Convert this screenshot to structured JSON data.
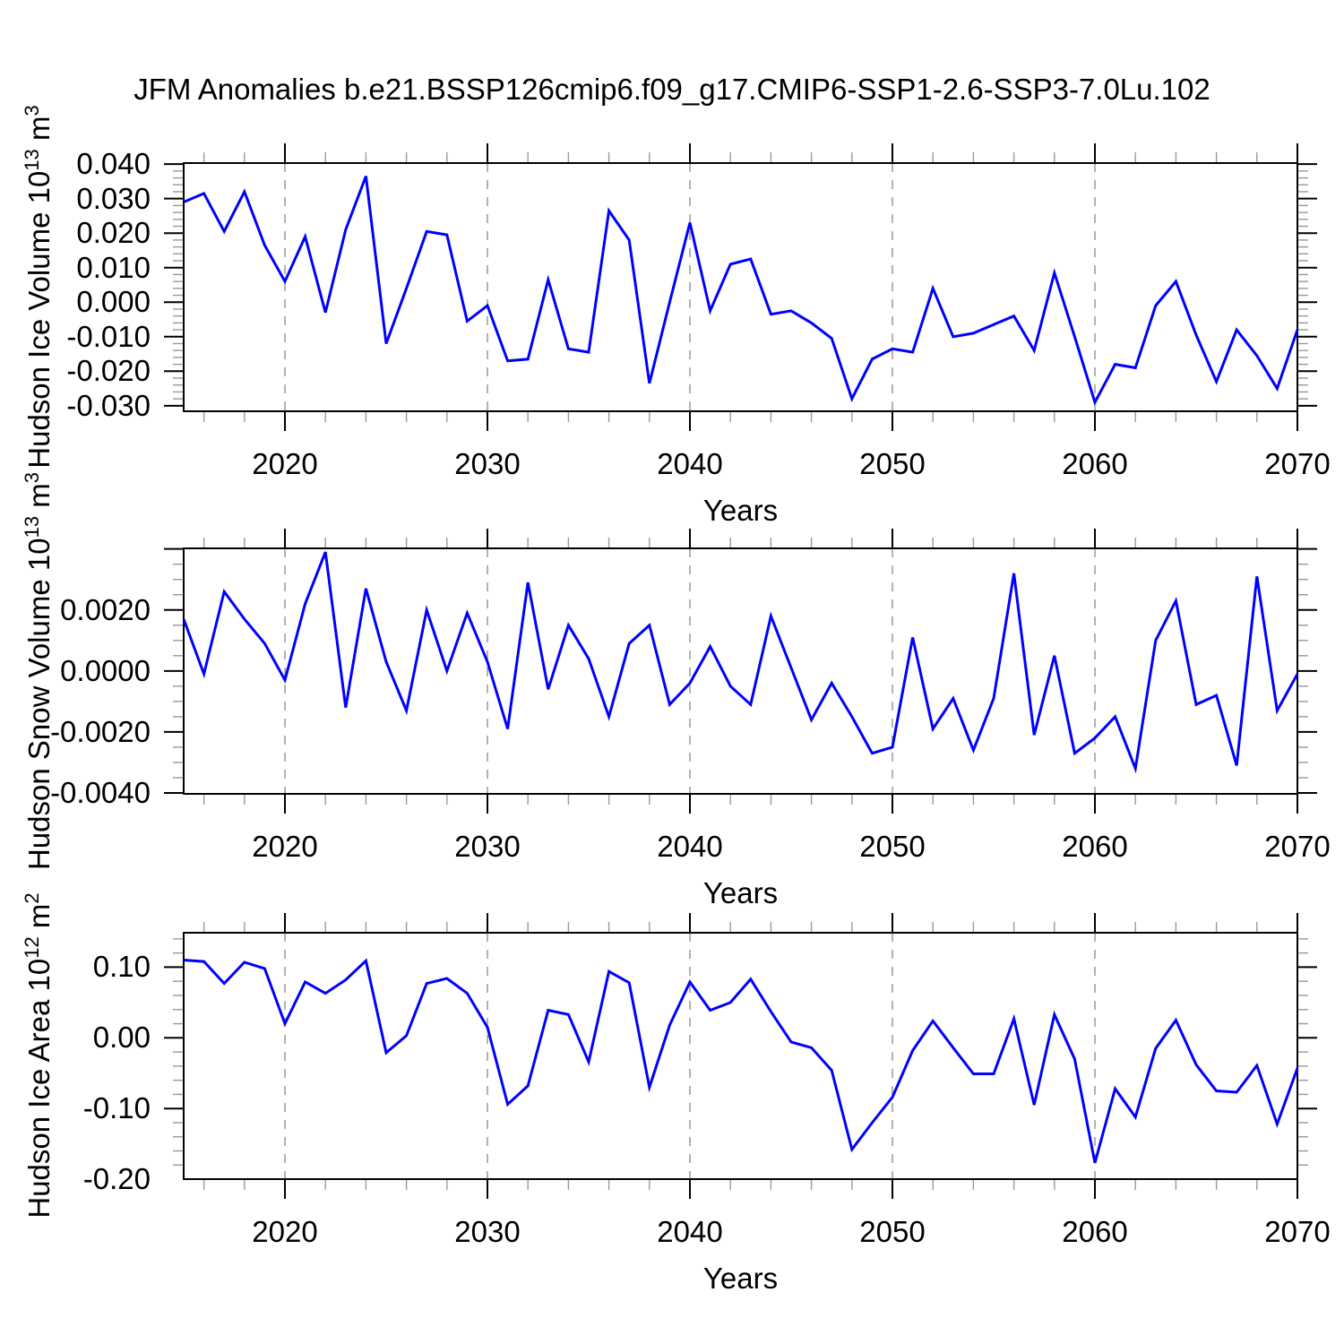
{
  "chart_data": {
    "type": "line",
    "title": "JFM Anomalies b.e21.BSSP126cmip6.f09_g17.CMIP6-SSP1-2.6-SSP3-7.0Lu.102",
    "xlabel": "Years",
    "line_color": "#0000ff",
    "grid_color": "#999999",
    "xlim": [
      2015,
      2070
    ],
    "xticks": [
      2020,
      2030,
      2040,
      2050,
      2060,
      2070
    ],
    "x_minor_step": 2,
    "grid_years": [
      2020,
      2030,
      2040,
      2050,
      2060
    ],
    "x_years": [
      2015,
      2016,
      2017,
      2018,
      2019,
      2020,
      2021,
      2022,
      2023,
      2024,
      2025,
      2026,
      2027,
      2028,
      2029,
      2030,
      2031,
      2032,
      2033,
      2034,
      2035,
      2036,
      2037,
      2038,
      2039,
      2040,
      2041,
      2042,
      2043,
      2044,
      2045,
      2046,
      2047,
      2048,
      2049,
      2050,
      2051,
      2052,
      2053,
      2054,
      2055,
      2056,
      2057,
      2058,
      2059,
      2060,
      2061,
      2062,
      2063,
      2064,
      2065,
      2066,
      2067,
      2068,
      2069,
      2070
    ],
    "charts": [
      {
        "name": "hudson-ice-volume",
        "ylabel": {
          "prefix": "Hudson Ice Volume 10",
          "exp": "13",
          "unit": " m",
          "unit_exp": "3"
        },
        "ylim": [
          -0.0316,
          0.0403
        ],
        "y_major_step": 0.01,
        "y_minor_step": 0.002,
        "ytick_labels": [
          "0.040",
          "0.030",
          "0.020",
          "0.010",
          "0.000",
          "-0.010",
          "-0.020",
          "-0.030"
        ],
        "ytick_values": [
          0.04,
          0.03,
          0.02,
          0.01,
          0,
          -0.01,
          -0.02,
          -0.03
        ],
        "values": [
          0.029,
          0.0315,
          0.0205,
          0.032,
          0.0165,
          0.006,
          0.019,
          -0.003,
          0.021,
          0.0365,
          -0.012,
          0.004,
          0.0205,
          0.0195,
          -0.0055,
          -0.001,
          -0.017,
          -0.0165,
          0.0065,
          -0.0135,
          -0.0145,
          0.0265,
          0.018,
          -0.0235,
          0.0,
          0.023,
          -0.0025,
          0.011,
          0.0125,
          -0.0035,
          -0.0025,
          -0.006,
          -0.0105,
          -0.028,
          -0.0165,
          -0.0135,
          -0.0145,
          0.004,
          -0.01,
          -0.009,
          -0.0065,
          -0.004,
          -0.014,
          0.0085,
          -0.01,
          -0.029,
          -0.018,
          -0.019,
          -0.001,
          0.006,
          -0.0095,
          -0.023,
          -0.008,
          -0.0155,
          -0.025,
          -0.008
        ]
      },
      {
        "name": "hudson-snow-volume",
        "ylabel": {
          "prefix": "Hudson Snow Volume 10",
          "exp": "13",
          "unit": " m",
          "unit_exp": "3"
        },
        "ylim": [
          -0.00403,
          0.00402
        ],
        "y_major_step": 0.002,
        "y_minor_step": 0.0005,
        "ytick_labels": [
          "0.0020",
          "0.0000",
          "-0.0020",
          "-0.0040"
        ],
        "ytick_values": [
          0.002,
          0,
          -0.002,
          -0.004
        ],
        "values": [
          0.0017,
          -0.0001,
          0.0026,
          0.0017,
          0.0009,
          -0.0003,
          0.0022,
          0.0039,
          -0.0012,
          0.0027,
          0.0003,
          -0.0013,
          0.002,
          0.0,
          0.0019,
          0.0003,
          -0.0019,
          0.0029,
          -0.0006,
          0.0015,
          0.0004,
          -0.0015,
          0.0009,
          0.0015,
          -0.0011,
          -0.0004,
          0.0008,
          -0.0005,
          -0.0011,
          0.0018,
          0.0001,
          -0.0016,
          -0.0004,
          -0.0015,
          -0.0027,
          -0.0025,
          0.0011,
          -0.0019,
          -0.0009,
          -0.0026,
          -0.0009,
          0.0032,
          -0.0021,
          0.0005,
          -0.0027,
          -0.0022,
          -0.0015,
          -0.0032,
          0.001,
          0.0023,
          -0.0011,
          -0.0008,
          -0.0031,
          0.0031,
          -0.0013,
          -0.0001
        ]
      },
      {
        "name": "hudson-ice-area",
        "ylabel": {
          "prefix": "Hudson Ice Area 10",
          "exp": "12",
          "unit": " m",
          "unit_exp": "2"
        },
        "ylim": [
          -0.1999,
          0.1487
        ],
        "y_major_step": 0.1,
        "y_minor_step": 0.02,
        "ytick_labels": [
          "0.10",
          "0.00",
          "-0.10",
          "-0.20"
        ],
        "ytick_values": [
          0.1,
          0,
          -0.1,
          -0.2
        ],
        "values": [
          0.11,
          0.108,
          0.077,
          0.107,
          0.098,
          0.02,
          0.079,
          0.063,
          0.082,
          0.109,
          -0.021,
          0.003,
          0.077,
          0.084,
          0.063,
          0.015,
          -0.094,
          -0.068,
          0.039,
          0.033,
          -0.034,
          0.094,
          0.078,
          -0.07,
          0.018,
          0.079,
          0.039,
          0.05,
          0.083,
          0.037,
          -0.006,
          -0.014,
          -0.046,
          -0.158,
          -0.12,
          -0.084,
          -0.018,
          0.024,
          -0.014,
          -0.051,
          -0.051,
          0.027,
          -0.095,
          0.033,
          -0.03,
          -0.177,
          -0.072,
          -0.112,
          -0.015,
          0.025,
          -0.038,
          -0.075,
          -0.077,
          -0.039,
          -0.122,
          -0.043
        ]
      }
    ]
  }
}
